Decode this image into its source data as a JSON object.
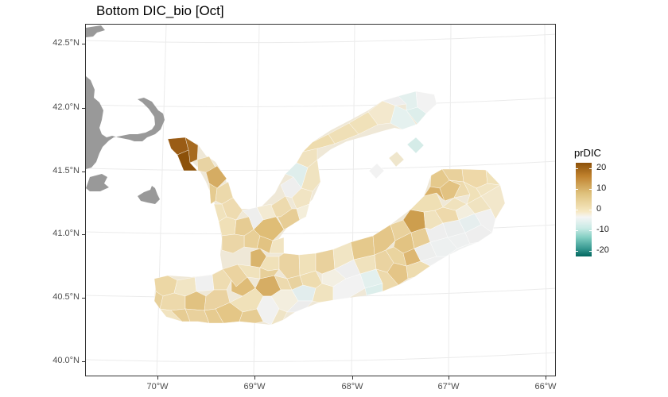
{
  "map": {
    "title": "Bottom DIC_bio [Oct]",
    "lat_labels": [
      "42.5°N",
      "42.0°N",
      "41.5°N",
      "41.0°N",
      "40.5°N",
      "40.0°N"
    ],
    "lon_labels": [
      "70°W",
      "69°W",
      "68°W",
      "67°W",
      "66°W"
    ],
    "land_color": "#999999",
    "grid_color": "#ebebeb"
  },
  "legend": {
    "title": "prDIC",
    "labels": [
      "20",
      "10",
      "0",
      "-10",
      "-20"
    ],
    "palette": [
      "#8c510a",
      "#bf812d",
      "#dfc27d",
      "#f6e8c3",
      "#f5f5f5",
      "#c7eae5",
      "#80cdc1",
      "#35978f",
      "#01665e"
    ]
  }
}
